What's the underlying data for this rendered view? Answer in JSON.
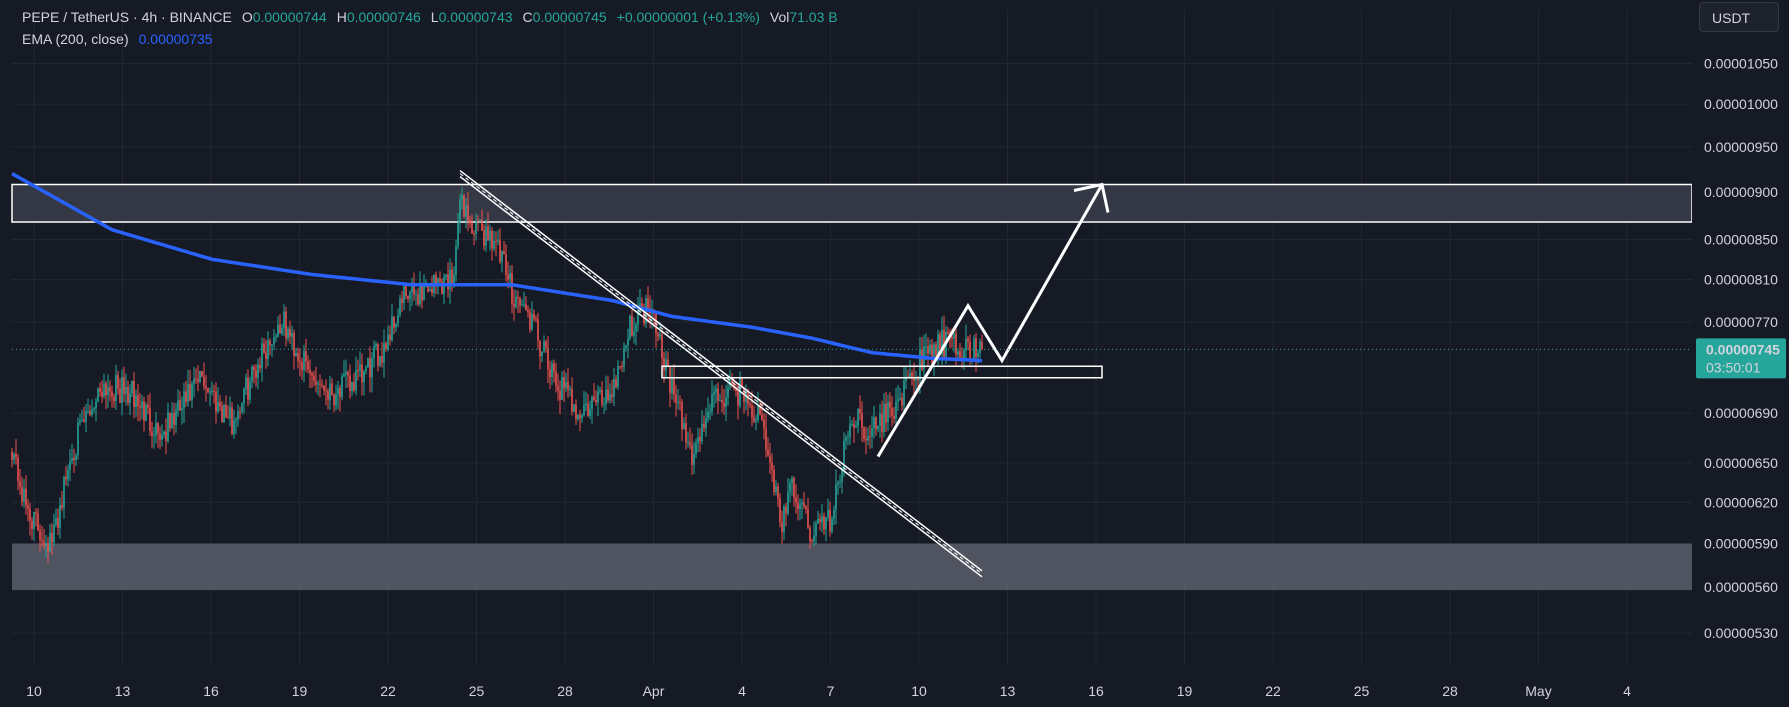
{
  "header": {
    "symbol": "PEPE / TetherUS · 4h · BINANCE",
    "open_label": "O",
    "open": "0.00000744",
    "high_label": "H",
    "high": "0.00000746",
    "low_label": "L",
    "low": "0.00000743",
    "close_label": "C",
    "close": "0.00000745",
    "change": "+0.00000001 (+0.13%)",
    "vol_label": "Vol",
    "vol": "71.03 B",
    "ema_name": "EMA (200, close)",
    "ema_value": "0.00000735",
    "quote_currency": "USDT"
  },
  "price_badge": {
    "price": "0.00000745",
    "countdown": "03:50:01"
  },
  "colors": {
    "background": "#161a25",
    "up": "#26a69a",
    "down": "#ef5350",
    "ema": "#2962ff",
    "zone": "#5a5f6b",
    "annotation": "#ffffff",
    "grid": "#232733"
  },
  "chart_data": {
    "type": "candlestick",
    "timeframe": "4h",
    "y_scale": "log",
    "ylim": [
      5.1e-06,
      1.08e-05
    ],
    "y_ticks": [
      "0.00001050",
      "0.00001000",
      "0.00000950",
      "0.00000900",
      "0.00000850",
      "0.00000810",
      "0.00000770",
      "0.00000690",
      "0.00000650",
      "0.00000620",
      "0.00000590",
      "0.00000560",
      "0.00000530"
    ],
    "x_ticks": [
      "10",
      "13",
      "16",
      "19",
      "22",
      "25",
      "28",
      "Apr",
      "4",
      "7",
      "10",
      "13",
      "16",
      "19",
      "22",
      "25",
      "28",
      "May",
      "4"
    ],
    "close_series_anchors": [
      [
        0,
        6.64e-06
      ],
      [
        6,
        6.2e-06
      ],
      [
        14,
        5.98e-06
      ],
      [
        20,
        5.9e-06
      ],
      [
        30,
        6.6e-06
      ],
      [
        45,
        7.15e-06
      ],
      [
        60,
        7.05e-06
      ],
      [
        75,
        6.72e-06
      ],
      [
        95,
        7.2e-06
      ],
      [
        110,
        6.82e-06
      ],
      [
        125,
        7.42e-06
      ],
      [
        135,
        7.7e-06
      ],
      [
        148,
        7.25e-06
      ],
      [
        160,
        7.08e-06
      ],
      [
        175,
        7.2e-06
      ],
      [
        185,
        7.45e-06
      ],
      [
        195,
        7.9e-06
      ],
      [
        210,
        8.05e-06
      ],
      [
        220,
        8.12e-06
      ],
      [
        225,
        8.95e-06
      ],
      [
        230,
        8.6e-06
      ],
      [
        240,
        8.55e-06
      ],
      [
        250,
        8e-06
      ],
      [
        260,
        7.7e-06
      ],
      [
        270,
        7.2e-06
      ],
      [
        285,
        6.9e-06
      ],
      [
        300,
        7.1e-06
      ],
      [
        310,
        7.7e-06
      ],
      [
        320,
        7.9e-06
      ],
      [
        325,
        7.45e-06
      ],
      [
        330,
        7.1e-06
      ],
      [
        340,
        6.55e-06
      ],
      [
        350,
        7e-06
      ],
      [
        365,
        7.1e-06
      ],
      [
        375,
        6.8e-06
      ],
      [
        385,
        6.05e-06
      ],
      [
        390,
        6.3e-06
      ],
      [
        400,
        5.98e-06
      ],
      [
        410,
        6.1e-06
      ],
      [
        420,
        6.9e-06
      ],
      [
        430,
        6.75e-06
      ],
      [
        445,
        7.05e-06
      ],
      [
        455,
        7.35e-06
      ],
      [
        465,
        7.5e-06
      ],
      [
        475,
        7.45e-06
      ],
      [
        485,
        7.45e-06
      ]
    ],
    "ema_200_anchors": [
      [
        0,
        9.2e-06
      ],
      [
        50,
        8.6e-06
      ],
      [
        100,
        8.3e-06
      ],
      [
        150,
        8.15e-06
      ],
      [
        200,
        8.05e-06
      ],
      [
        250,
        8.05e-06
      ],
      [
        300,
        7.9e-06
      ],
      [
        330,
        7.75e-06
      ],
      [
        370,
        7.65e-06
      ],
      [
        400,
        7.55e-06
      ],
      [
        430,
        7.42e-06
      ],
      [
        460,
        7.37e-06
      ],
      [
        485,
        7.35e-06
      ]
    ],
    "zones": [
      {
        "type": "resistance",
        "top": 9.08e-06,
        "bottom": 8.68e-06
      },
      {
        "type": "support",
        "top": 5.9e-06,
        "bottom": 5.58e-06
      }
    ],
    "retest_box": {
      "top": 7.3e-06,
      "bottom": 7.2e-06
    },
    "trendline": {
      "from": [
        224,
        9.2e-06
      ],
      "to": [
        485,
        5.69e-06
      ]
    },
    "projection_path": [
      [
        433,
        6.55e-06
      ],
      [
        478,
        7.85e-06
      ],
      [
        495,
        7.35e-06
      ],
      [
        545,
        9.08e-06
      ]
    ],
    "last_price": 7.45e-06
  }
}
